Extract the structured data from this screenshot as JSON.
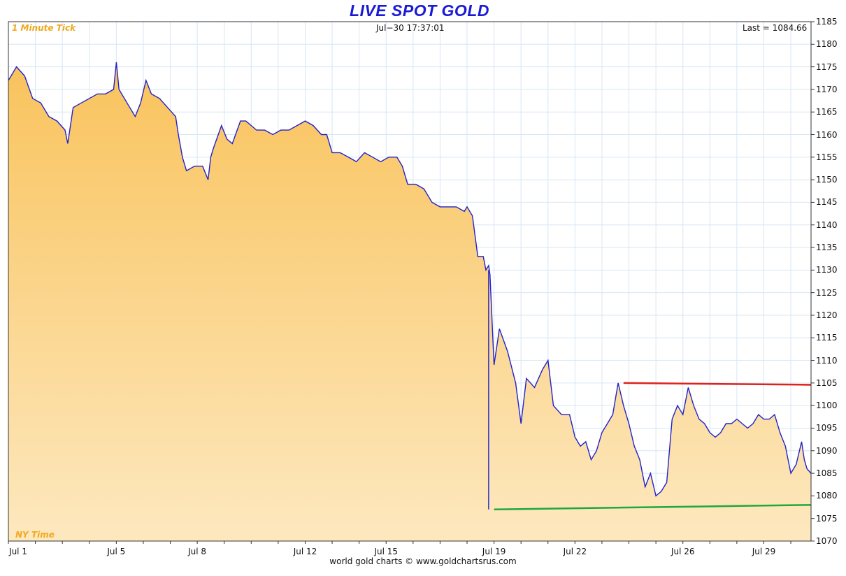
{
  "chart_data": {
    "type": "area",
    "title": "LIVE SPOT GOLD",
    "subtitle_left": "1 Minute Tick",
    "timestamp": "Jul−30  17:37:01",
    "last_label": "Last = 1084.66",
    "bottom_left_label": "NY Time",
    "footer": "world gold charts © www.goldchartsrus.com",
    "ylim": [
      1070,
      1185
    ],
    "yticks": [
      "1070",
      "1075",
      "1080",
      "1085",
      "1090",
      "1095",
      "1100",
      "1105",
      "1110",
      "1115",
      "1120",
      "1125",
      "1130",
      "1135",
      "1140",
      "1145",
      "1150",
      "1155",
      "1160",
      "1165",
      "1170",
      "1175",
      "1180",
      "1185"
    ],
    "xlim": [
      0,
      29.75
    ],
    "xticks": [
      {
        "label": "Jul 1",
        "x": 0
      },
      {
        "label": "Jul 5",
        "x": 4
      },
      {
        "label": "Jul 8",
        "x": 7
      },
      {
        "label": "Jul 12",
        "x": 11
      },
      {
        "label": "Jul 15",
        "x": 14
      },
      {
        "label": "Jul 19",
        "x": 18
      },
      {
        "label": "Jul 22",
        "x": 21
      },
      {
        "label": "Jul 26",
        "x": 25
      },
      {
        "label": "Jul 29",
        "x": 28
      }
    ],
    "series": [
      {
        "x": [
          0,
          0.3,
          0.6,
          0.9,
          1.2,
          1.5,
          1.8,
          2.1,
          2.2,
          2.4,
          2.7,
          3.0,
          3.3,
          3.6,
          3.9,
          4.0,
          4.1,
          4.3,
          4.5,
          4.7,
          4.9,
          5.1,
          5.3,
          5.6,
          5.9,
          6.2,
          6.3,
          6.45,
          6.6,
          6.9,
          7.2,
          7.4,
          7.5,
          7.6,
          7.9,
          8.1,
          8.3,
          8.6,
          8.8,
          9.0,
          9.2,
          9.5,
          9.8,
          10.1,
          10.4,
          10.7,
          11.0,
          11.3,
          11.6,
          11.8,
          12.0,
          12.3,
          12.6,
          12.9,
          13.2,
          13.5,
          13.8,
          14.1,
          14.4,
          14.6,
          14.8,
          15.1,
          15.4,
          15.7,
          16.0,
          16.3,
          16.6,
          16.9,
          17.0,
          17.2,
          17.4,
          17.6,
          17.7,
          17.8,
          17.85,
          18.0,
          18.2,
          18.5,
          18.8,
          19.0,
          19.2,
          19.5,
          19.8,
          20.0,
          20.2,
          20.5,
          20.8,
          21.0,
          21.2,
          21.4,
          21.6,
          21.8,
          22.0,
          22.2,
          22.4,
          22.6,
          22.8,
          23.0,
          23.2,
          23.4,
          23.6,
          23.8,
          24.0,
          24.2,
          24.4,
          24.6,
          24.8,
          25.0,
          25.2,
          25.4,
          25.6,
          25.8,
          26.0,
          26.2,
          26.4,
          26.6,
          26.8,
          27.0,
          27.2,
          27.4,
          27.6,
          27.8,
          28.0,
          28.2,
          28.4,
          28.6,
          28.8,
          29.0,
          29.2,
          29.4,
          29.5,
          29.6,
          29.75
        ],
        "y": [
          1172,
          1175,
          1173,
          1168,
          1167,
          1164,
          1163,
          1161,
          1158,
          1166,
          1167,
          1168,
          1169,
          1169,
          1170,
          1176,
          1170,
          1168,
          1166,
          1164,
          1167,
          1172,
          1169,
          1168,
          1166,
          1164,
          1160,
          1155,
          1152,
          1153,
          1153,
          1150,
          1155,
          1157,
          1162,
          1159,
          1158,
          1163,
          1163,
          1162,
          1161,
          1161,
          1160,
          1161,
          1161,
          1162,
          1163,
          1162,
          1160,
          1160,
          1156,
          1156,
          1155,
          1154,
          1156,
          1155,
          1154,
          1155,
          1155,
          1153,
          1149,
          1149,
          1148,
          1145,
          1144,
          1144,
          1144,
          1143,
          1144,
          1142,
          1133,
          1133,
          1130,
          1131,
          1129,
          1109,
          1117,
          1112,
          1105,
          1096,
          1106,
          1104,
          1108,
          1110,
          1100,
          1098,
          1098,
          1093,
          1091,
          1092,
          1088,
          1090,
          1094,
          1096,
          1098,
          1105,
          1100,
          1096,
          1091,
          1088,
          1082,
          1085,
          1080,
          1081,
          1083,
          1097,
          1100,
          1098,
          1104,
          1100,
          1097,
          1096,
          1094,
          1093,
          1094,
          1096,
          1096,
          1097,
          1096,
          1095,
          1096,
          1098,
          1097,
          1097,
          1098,
          1094,
          1091,
          1085,
          1087,
          1092,
          1088,
          1086,
          1085
        ]
      }
    ],
    "annotations": [
      {
        "type": "line",
        "color": "#e0201a",
        "from": [
          22.8,
          1105
        ],
        "to": [
          29.75,
          1104.6
        ]
      },
      {
        "type": "line",
        "color": "#1fa83b",
        "from": [
          18,
          1077
        ],
        "to": [
          29.75,
          1078
        ]
      },
      {
        "type": "line",
        "color": "#2222cc",
        "from": [
          17.8,
          1130
        ],
        "to": [
          17.8,
          1077
        ]
      }
    ],
    "line_color": "#2222cc",
    "fill_top_color": "#f9c35c",
    "fill_bottom_color": "#fde8bf",
    "grid": true
  }
}
